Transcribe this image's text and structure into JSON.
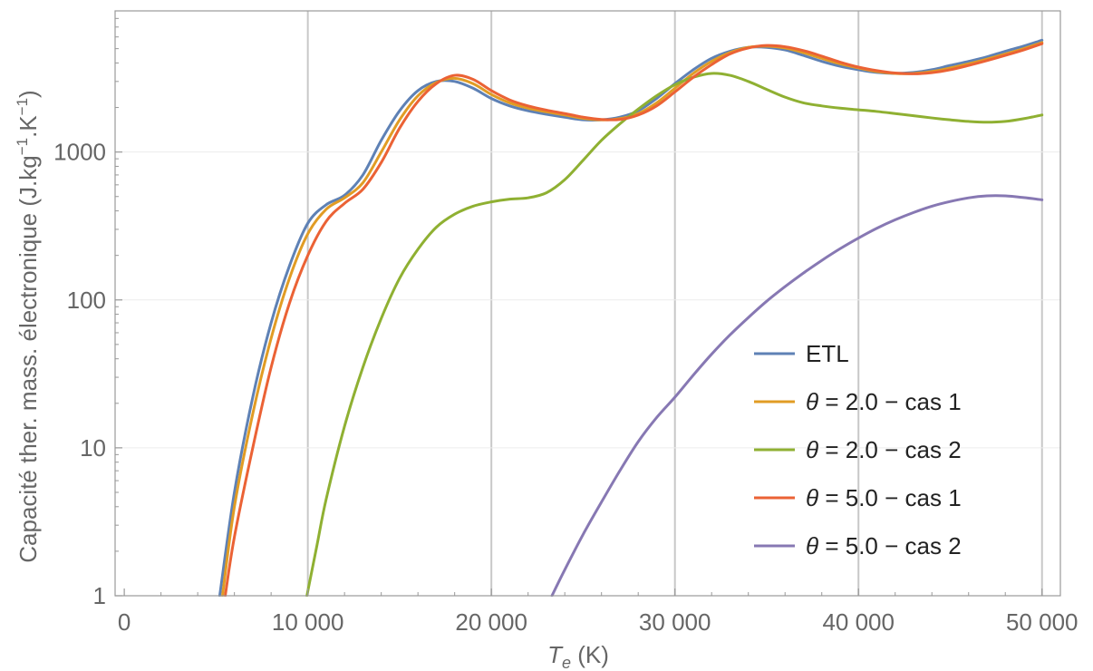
{
  "chart_data": {
    "type": "line",
    "xlabel": "T_e (K)",
    "xlabel_parts": {
      "main": "T",
      "sub": "e",
      "unit": " (K)"
    },
    "ylabel": "Capacité ther. mass. électronique (J.kg^-1.K^-1)",
    "ylabel_parts": {
      "pre": "Capacité ther. mass. électronique (J.kg",
      "sup1": "−1",
      "mid": ".K",
      "sup2": "−1",
      "post": ")"
    },
    "xlim": [
      -500,
      51000
    ],
    "ylim": [
      1,
      9000
    ],
    "yscale": "log",
    "x_ticks": [
      0,
      10000,
      20000,
      30000,
      40000,
      50000
    ],
    "x_tick_labels": [
      "0",
      "10 000",
      "20 000",
      "30 000",
      "40 000",
      "50 000"
    ],
    "y_ticks": [
      1,
      10,
      100,
      1000
    ],
    "y_tick_labels": [
      "1",
      "10",
      "100",
      "1000"
    ],
    "grid": "vertical major lines, faint horizontal lines",
    "legend_position": "bottom-right",
    "series": [
      {
        "name": "ETL",
        "color": "#5e81b5",
        "x": [
          5200,
          6000,
          7000,
          8000,
          9000,
          10000,
          11000,
          12000,
          13000,
          14000,
          15000,
          16000,
          17000,
          18000,
          19000,
          20000,
          21000,
          22000,
          23000,
          24000,
          25000,
          26000,
          27000,
          28000,
          29000,
          30000,
          31000,
          32000,
          33000,
          34000,
          35000,
          36000,
          37000,
          38000,
          39000,
          40000,
          41000,
          42000,
          43000,
          44000,
          45000,
          46000,
          47000,
          48000,
          49000,
          50000
        ],
        "y": [
          1,
          5,
          22,
          70,
          170,
          330,
          440,
          510,
          700,
          1200,
          1900,
          2600,
          3000,
          3000,
          2700,
          2300,
          2050,
          1900,
          1800,
          1720,
          1650,
          1650,
          1720,
          1900,
          2300,
          2900,
          3600,
          4300,
          4800,
          5100,
          5100,
          4900,
          4500,
          4100,
          3800,
          3600,
          3450,
          3400,
          3450,
          3600,
          3850,
          4100,
          4400,
          4800,
          5200,
          5700
        ]
      },
      {
        "name": "θ = 2.0 − cas 1",
        "color": "#e19c24",
        "x": [
          5350,
          6000,
          7000,
          8000,
          9000,
          10000,
          11000,
          12000,
          13000,
          14000,
          15000,
          16000,
          17000,
          18000,
          19000,
          20000,
          21000,
          22000,
          23000,
          24000,
          25000,
          26000,
          27000,
          28000,
          29000,
          30000,
          31000,
          32000,
          33000,
          34000,
          35000,
          36000,
          37000,
          38000,
          39000,
          40000,
          41000,
          42000,
          43000,
          44000,
          45000,
          46000,
          47000,
          48000,
          49000,
          50000
        ],
        "y": [
          1,
          4,
          17,
          55,
          140,
          280,
          410,
          490,
          620,
          1000,
          1650,
          2400,
          2950,
          3150,
          2900,
          2450,
          2150,
          1980,
          1870,
          1780,
          1690,
          1650,
          1680,
          1820,
          2150,
          2700,
          3400,
          4100,
          4700,
          5100,
          5200,
          5050,
          4700,
          4300,
          3950,
          3700,
          3500,
          3400,
          3400,
          3500,
          3700,
          3950,
          4250,
          4600,
          5000,
          5500
        ]
      },
      {
        "name": "θ = 2.0 − cas 2",
        "color": "#8fb032",
        "x": [
          9950,
          10500,
          11000,
          12000,
          13000,
          14000,
          15000,
          16000,
          17000,
          18000,
          19000,
          20000,
          21000,
          22000,
          23000,
          24000,
          25000,
          26000,
          27000,
          28000,
          29000,
          30000,
          31000,
          32000,
          33000,
          34000,
          35000,
          36000,
          37000,
          38000,
          39000,
          40000,
          41000,
          42000,
          43000,
          44000,
          45000,
          46000,
          47000,
          48000,
          49000,
          50000
        ],
        "y": [
          1,
          2.2,
          4.5,
          14,
          35,
          75,
          140,
          220,
          310,
          380,
          430,
          460,
          480,
          490,
          530,
          650,
          880,
          1200,
          1550,
          1950,
          2400,
          2850,
          3200,
          3400,
          3300,
          3000,
          2650,
          2350,
          2150,
          2050,
          1980,
          1930,
          1880,
          1820,
          1760,
          1700,
          1650,
          1610,
          1590,
          1610,
          1680,
          1780
        ]
      },
      {
        "name": "θ = 5.0 − cas 1",
        "color": "#eb6235",
        "x": [
          5500,
          6000,
          7000,
          8000,
          9000,
          10000,
          11000,
          12000,
          13000,
          14000,
          15000,
          16000,
          17000,
          18000,
          19000,
          20000,
          21000,
          22000,
          23000,
          24000,
          25000,
          26000,
          27000,
          28000,
          29000,
          30000,
          31000,
          32000,
          33000,
          34000,
          35000,
          36000,
          37000,
          38000,
          39000,
          40000,
          41000,
          42000,
          43000,
          44000,
          45000,
          46000,
          47000,
          48000,
          49000,
          50000
        ],
        "y": [
          1,
          2.5,
          10,
          35,
          95,
          200,
          340,
          450,
          560,
          850,
          1450,
          2200,
          2900,
          3300,
          3100,
          2600,
          2250,
          2050,
          1920,
          1820,
          1720,
          1660,
          1660,
          1780,
          2050,
          2550,
          3200,
          3900,
          4600,
          5050,
          5250,
          5150,
          4850,
          4450,
          4050,
          3750,
          3550,
          3420,
          3380,
          3440,
          3600,
          3850,
          4150,
          4500,
          4900,
          5400
        ]
      },
      {
        "name": "θ = 5.0 − cas 2",
        "color": "#8778b3",
        "x": [
          23300,
          24000,
          25000,
          26000,
          27000,
          28000,
          29000,
          30000,
          31000,
          32000,
          33000,
          34000,
          35000,
          36000,
          37000,
          38000,
          39000,
          40000,
          41000,
          42000,
          43000,
          44000,
          45000,
          46000,
          47000,
          48000,
          49000,
          50000
        ],
        "y": [
          1,
          1.5,
          2.6,
          4.3,
          7,
          11,
          16,
          22,
          31,
          43,
          58,
          76,
          98,
          123,
          152,
          185,
          222,
          262,
          305,
          348,
          390,
          430,
          463,
          490,
          505,
          505,
          492,
          475
        ]
      }
    ]
  }
}
